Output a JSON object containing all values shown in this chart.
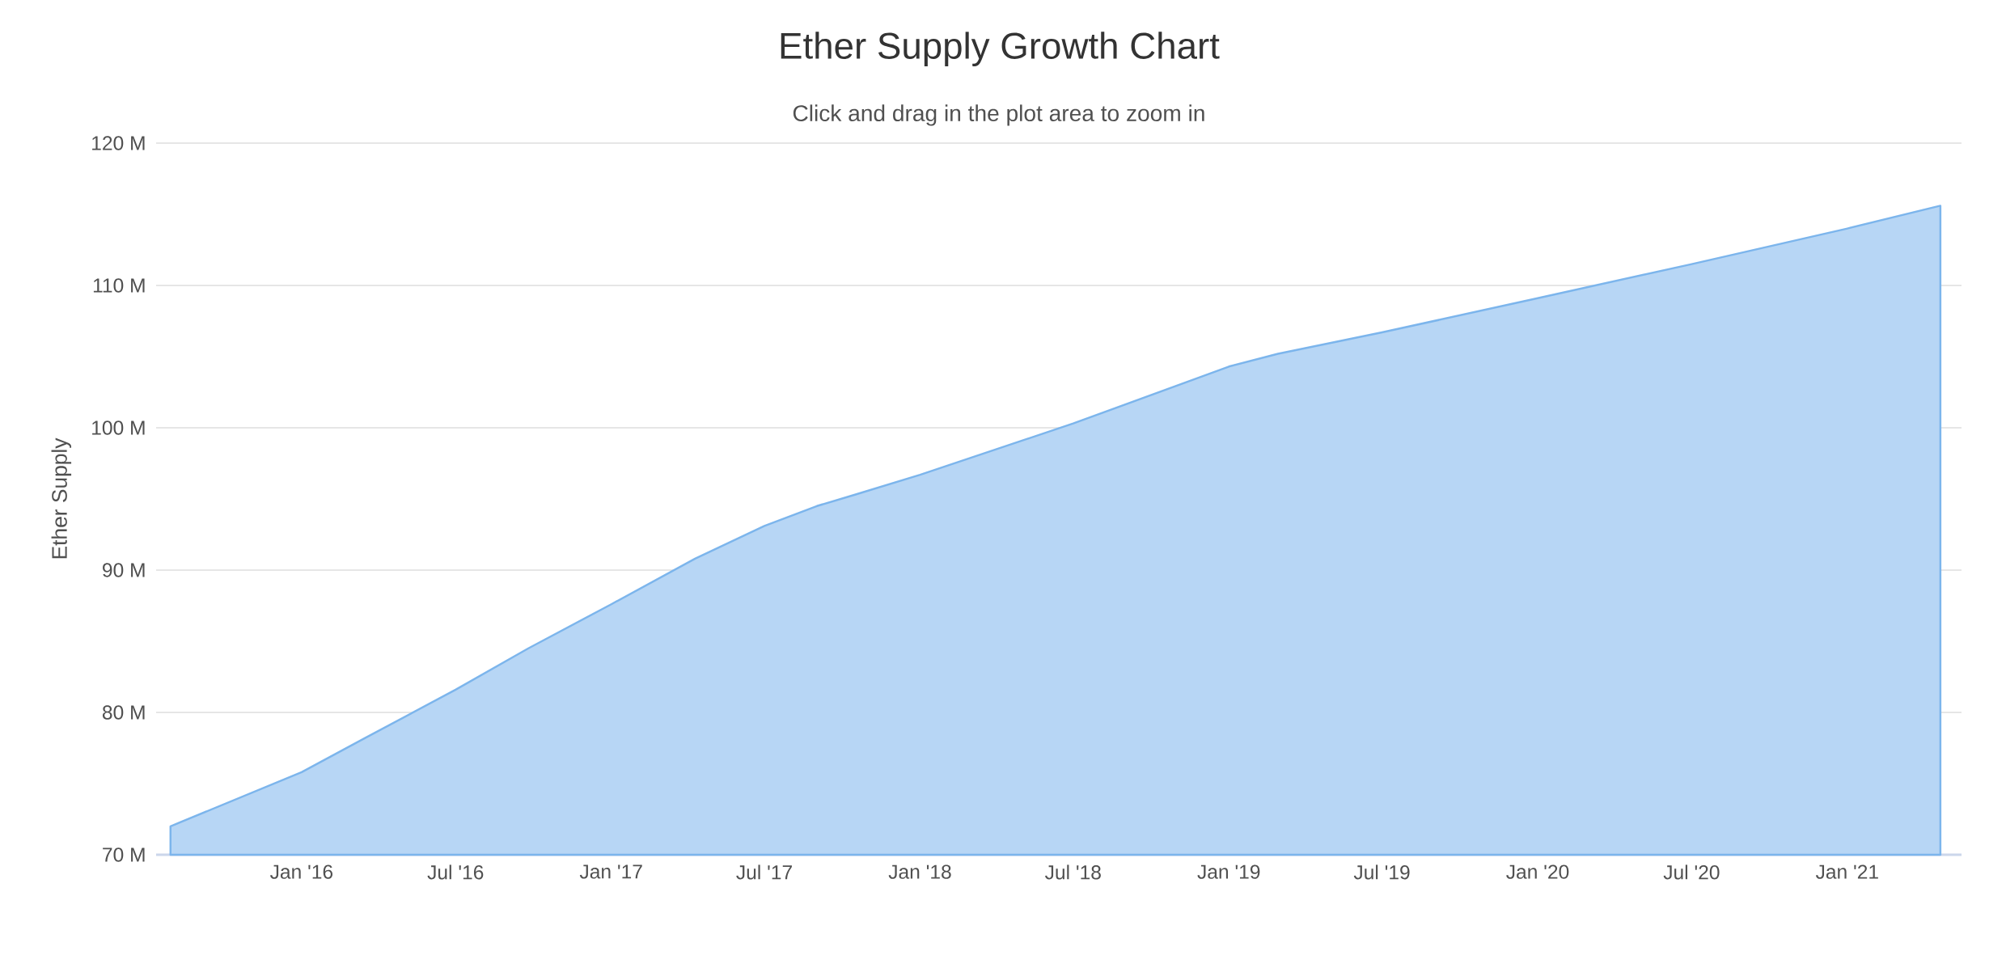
{
  "chart_data": {
    "type": "area",
    "title": "Ether Supply Growth Chart",
    "subtitle": "Click and drag in the plot area to zoom in",
    "ylabel": "Ether Supply",
    "x": [
      "2015-07-30",
      "2016-01-01",
      "2016-03-16",
      "2016-07-01",
      "2016-09-25",
      "2017-01-01",
      "2017-04-10",
      "2017-07-01",
      "2017-09-01",
      "2017-10-16",
      "2018-01-01",
      "2018-07-01",
      "2019-01-01",
      "2019-02-28",
      "2019-07-01",
      "2020-01-01",
      "2020-07-01",
      "2021-01-01",
      "2021-04-21"
    ],
    "series": [
      {
        "color": "#7cb5ec",
        "values": [
          72.0,
          75.8,
          78.2,
          81.6,
          84.5,
          87.6,
          90.8,
          93.1,
          94.5,
          95.3,
          96.7,
          100.3,
          104.3,
          105.2,
          106.7,
          109.1,
          111.5,
          114.0,
          115.6
        ]
      }
    ],
    "xlim": [
      "2015-07-13",
      "2021-05-16"
    ],
    "ylim": [
      70,
      120
    ],
    "xticks": [
      {
        "value": "2016-01-01",
        "label": "Jan '16"
      },
      {
        "value": "2016-07-01",
        "label": "Jul '16"
      },
      {
        "value": "2017-01-01",
        "label": "Jan '17"
      },
      {
        "value": "2017-07-01",
        "label": "Jul '17"
      },
      {
        "value": "2018-01-01",
        "label": "Jan '18"
      },
      {
        "value": "2018-07-01",
        "label": "Jul '18"
      },
      {
        "value": "2019-01-01",
        "label": "Jan '19"
      },
      {
        "value": "2019-07-01",
        "label": "Jul '19"
      },
      {
        "value": "2020-01-01",
        "label": "Jan '20"
      },
      {
        "value": "2020-07-01",
        "label": "Jul '20"
      },
      {
        "value": "2021-01-01",
        "label": "Jan '21"
      }
    ],
    "yticks": [
      {
        "value": 70,
        "label": "70 M"
      },
      {
        "value": 80,
        "label": "80 M"
      },
      {
        "value": 90,
        "label": "90 M"
      },
      {
        "value": 100,
        "label": "100 M"
      },
      {
        "value": 110,
        "label": "110 M"
      },
      {
        "value": 120,
        "label": "120 M"
      }
    ],
    "grid": "y",
    "marker": "none",
    "line_style": "solid"
  }
}
